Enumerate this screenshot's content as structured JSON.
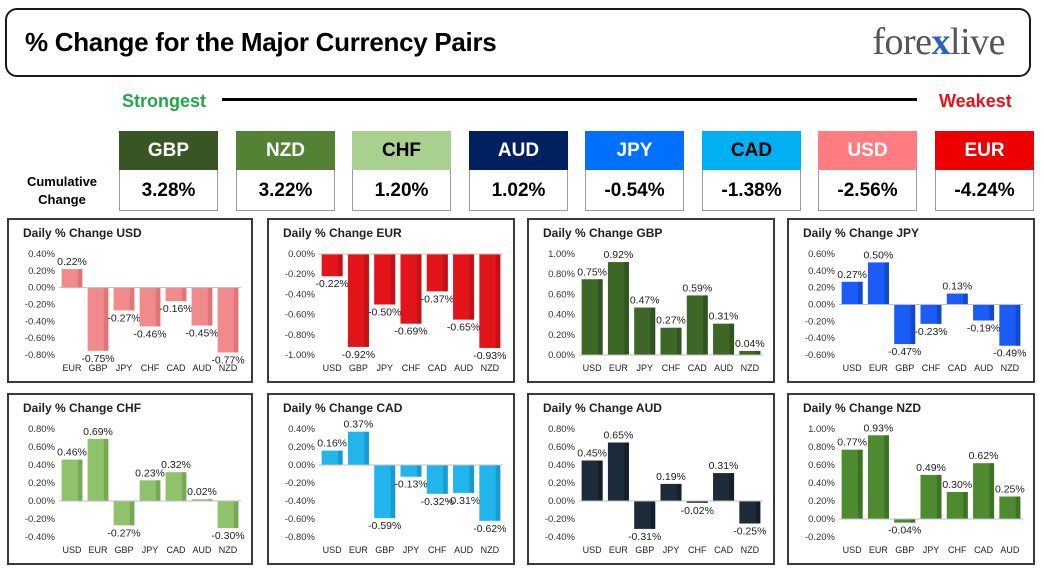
{
  "header": {
    "title": "% Change for the Major Currency Pairs",
    "logo_left": "fore",
    "logo_x": "x",
    "logo_right": "live"
  },
  "scale": {
    "strongest": "Strongest",
    "weakest": "Weakest"
  },
  "cumulative": {
    "label_line1": "Cumulative",
    "label_line2": "Change",
    "items": [
      {
        "code": "GBP",
        "value": "3.28%",
        "color": "#375623",
        "text_color": "#ffffff"
      },
      {
        "code": "NZD",
        "value": "3.22%",
        "color": "#548235",
        "text_color": "#ffffff"
      },
      {
        "code": "CHF",
        "value": "1.20%",
        "color": "#a9d08e",
        "text_color": "#000000"
      },
      {
        "code": "AUD",
        "value": "1.02%",
        "color": "#002060",
        "text_color": "#ffffff"
      },
      {
        "code": "JPY",
        "value": "-0.54%",
        "color": "#0070ff",
        "text_color": "#ffffff"
      },
      {
        "code": "CAD",
        "value": "-1.38%",
        "color": "#00b0f0",
        "text_color": "#000000"
      },
      {
        "code": "USD",
        "value": "-2.56%",
        "color": "#ff7c80",
        "text_color": "#ffffff"
      },
      {
        "code": "EUR",
        "value": "-4.24%",
        "color": "#ee0000",
        "text_color": "#ffffff"
      }
    ]
  },
  "chart_data": [
    {
      "type": "bar",
      "title": "Daily % Change USD",
      "color": "#f08a8c",
      "dark": "#c95a5d",
      "categories": [
        "EUR",
        "GBP",
        "JPY",
        "CHF",
        "CAD",
        "AUD",
        "NZD"
      ],
      "values": [
        0.22,
        -0.75,
        -0.27,
        -0.46,
        -0.16,
        -0.45,
        -0.77
      ],
      "labels": [
        "0.22%",
        "-0.75%",
        "-0.27%",
        "-0.46%",
        "-0.16%",
        "-0.45%",
        "-0.77%"
      ],
      "ylim": [
        -0.8,
        0.4
      ],
      "yticks": [
        0.4,
        0.2,
        0.0,
        -0.2,
        -0.4,
        -0.6,
        -0.8
      ],
      "ytick_labels": [
        "0.40%",
        "0.20%",
        "0.00%",
        "-0.20%",
        "-0.40%",
        "-0.60%",
        "-0.80%"
      ]
    },
    {
      "type": "bar",
      "title": "Daily % Change EUR",
      "color": "#e4141b",
      "dark": "#9c0d12",
      "categories": [
        "USD",
        "GBP",
        "JPY",
        "CHF",
        "CAD",
        "AUD",
        "NZD"
      ],
      "values": [
        -0.22,
        -0.92,
        -0.5,
        -0.69,
        -0.37,
        -0.65,
        -0.93
      ],
      "labels": [
        "-0.22%",
        "-0.92%",
        "-0.50%",
        "-0.69%",
        "-0.37%",
        "-0.65%",
        "-0.93%"
      ],
      "ylim": [
        -1.0,
        0.0
      ],
      "yticks": [
        0.0,
        -0.2,
        -0.4,
        -0.6,
        -0.8,
        -1.0
      ],
      "ytick_labels": [
        "0.00%",
        "-0.20%",
        "-0.40%",
        "-0.60%",
        "-0.80%",
        "-1.00%"
      ]
    },
    {
      "type": "bar",
      "title": "Daily % Change GBP",
      "color": "#3d6627",
      "dark": "#223d14",
      "categories": [
        "USD",
        "EUR",
        "JPY",
        "CHF",
        "CAD",
        "AUD",
        "NZD"
      ],
      "values": [
        0.75,
        0.92,
        0.47,
        0.27,
        0.59,
        0.31,
        0.04
      ],
      "labels": [
        "0.75%",
        "0.92%",
        "0.47%",
        "0.27%",
        "0.59%",
        "0.31%",
        "0.04%"
      ],
      "ylim": [
        0.0,
        1.0
      ],
      "yticks": [
        1.0,
        0.8,
        0.6,
        0.4,
        0.2,
        0.0
      ],
      "ytick_labels": [
        "1.00%",
        "0.80%",
        "0.60%",
        "0.40%",
        "0.20%",
        "0.00%"
      ]
    },
    {
      "type": "bar",
      "title": "Daily % Change JPY",
      "color": "#1a5cf5",
      "dark": "#0a34a8",
      "categories": [
        "USD",
        "EUR",
        "GBP",
        "CHF",
        "CAD",
        "AUD",
        "NZD"
      ],
      "values": [
        0.27,
        0.5,
        -0.47,
        -0.23,
        0.13,
        -0.19,
        -0.49
      ],
      "labels": [
        "0.27%",
        "0.50%",
        "-0.47%",
        "-0.23%",
        "0.13%",
        "-0.19%",
        "-0.49%"
      ],
      "ylim": [
        -0.6,
        0.6
      ],
      "yticks": [
        0.6,
        0.4,
        0.2,
        0.0,
        -0.2,
        -0.4,
        -0.6
      ],
      "ytick_labels": [
        "0.60%",
        "0.40%",
        "0.20%",
        "0.00%",
        "-0.20%",
        "-0.40%",
        "-0.60%"
      ]
    },
    {
      "type": "bar",
      "title": "Daily % Change CHF",
      "color": "#8fc26b",
      "dark": "#5a8a3c",
      "categories": [
        "USD",
        "EUR",
        "GBP",
        "JPY",
        "CAD",
        "AUD",
        "NZD"
      ],
      "values": [
        0.46,
        0.69,
        -0.27,
        0.23,
        0.32,
        0.02,
        -0.3
      ],
      "labels": [
        "0.46%",
        "0.69%",
        "-0.27%",
        "0.23%",
        "0.32%",
        "0.02%",
        "-0.30%"
      ],
      "ylim": [
        -0.4,
        0.8
      ],
      "yticks": [
        0.8,
        0.6,
        0.4,
        0.2,
        0.0,
        -0.2,
        -0.4
      ],
      "ytick_labels": [
        "0.80%",
        "0.60%",
        "0.40%",
        "0.20%",
        "0.00%",
        "-0.20%",
        "-0.40%"
      ]
    },
    {
      "type": "bar",
      "title": "Daily % Change CAD",
      "color": "#22b5ec",
      "dark": "#0b7fae",
      "categories": [
        "USD",
        "EUR",
        "GBP",
        "JPY",
        "CHF",
        "AUD",
        "NZD"
      ],
      "values": [
        0.16,
        0.37,
        -0.59,
        -0.13,
        -0.32,
        -0.31,
        -0.62
      ],
      "labels": [
        "0.16%",
        "0.37%",
        "-0.59%",
        "-0.13%",
        "-0.32%",
        "-0.31%",
        "-0.62%"
      ],
      "ylim": [
        -0.8,
        0.4
      ],
      "yticks": [
        0.4,
        0.2,
        0.0,
        -0.2,
        -0.4,
        -0.6,
        -0.8
      ],
      "ytick_labels": [
        "0.40%",
        "0.20%",
        "0.00%",
        "-0.20%",
        "-0.40%",
        "-0.60%",
        "-0.80%"
      ]
    },
    {
      "type": "bar",
      "title": "Daily % Change AUD",
      "color": "#1c2a3a",
      "dark": "#0a121b",
      "categories": [
        "USD",
        "EUR",
        "GBP",
        "JPY",
        "CHF",
        "CAD",
        "NZD"
      ],
      "values": [
        0.45,
        0.65,
        -0.31,
        0.19,
        -0.02,
        0.31,
        -0.25
      ],
      "labels": [
        "0.45%",
        "0.65%",
        "-0.31%",
        "0.19%",
        "-0.02%",
        "0.31%",
        "-0.25%"
      ],
      "ylim": [
        -0.4,
        0.8
      ],
      "yticks": [
        0.8,
        0.6,
        0.4,
        0.2,
        0.0,
        -0.2,
        -0.4
      ],
      "ytick_labels": [
        "0.80%",
        "0.60%",
        "0.40%",
        "0.20%",
        "0.00%",
        "-0.20%",
        "-0.40%"
      ]
    },
    {
      "type": "bar",
      "title": "Daily % Change NZD",
      "color": "#4e8a2f",
      "dark": "#2b5418",
      "categories": [
        "USD",
        "EUR",
        "GBP",
        "JPY",
        "CHF",
        "CAD",
        "AUD"
      ],
      "values": [
        0.77,
        0.93,
        -0.04,
        0.49,
        0.3,
        0.62,
        0.25
      ],
      "labels": [
        "0.77%",
        "0.93%",
        "-0.04%",
        "0.49%",
        "0.30%",
        "0.62%",
        "0.25%"
      ],
      "ylim": [
        -0.2,
        1.0
      ],
      "yticks": [
        1.0,
        0.8,
        0.6,
        0.4,
        0.2,
        0.0,
        -0.2
      ],
      "ytick_labels": [
        "1.00%",
        "0.80%",
        "0.60%",
        "0.40%",
        "0.20%",
        "0.00%",
        "-0.20%"
      ]
    }
  ]
}
